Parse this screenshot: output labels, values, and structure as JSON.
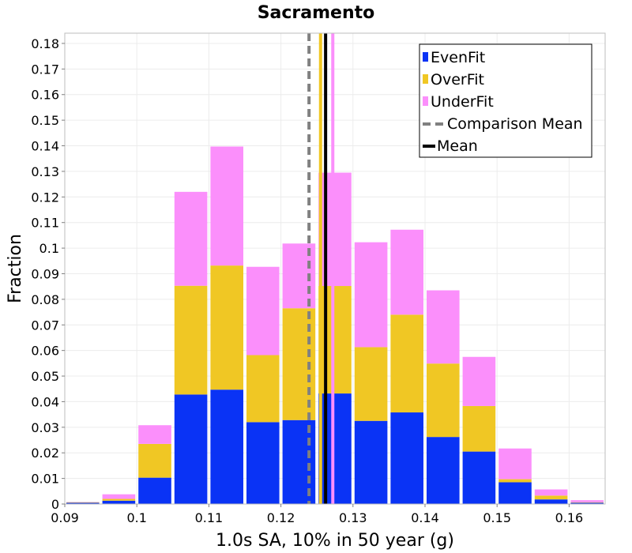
{
  "chart_data": {
    "type": "bar",
    "stacked": true,
    "title": "Sacramento",
    "xlabel": "1.0s SA, 10% in 50 year (g)",
    "ylabel": "Fraction",
    "xlim": [
      0.09,
      0.165
    ],
    "ylim": [
      0,
      0.184
    ],
    "xticks": [
      "0.09",
      "0.1",
      "0.11",
      "0.12",
      "0.13",
      "0.14",
      "0.15",
      "0.16"
    ],
    "yticks": [
      "0",
      "0.01",
      "0.02",
      "0.03",
      "0.04",
      "0.05",
      "0.06",
      "0.07",
      "0.08",
      "0.09",
      "0.1",
      "0.11",
      "0.12",
      "0.13",
      "0.14",
      "0.15",
      "0.16",
      "0.17",
      "0.18"
    ],
    "bin_width": 0.005,
    "bin_centers": [
      0.0925,
      0.0975,
      0.1025,
      0.1075,
      0.1125,
      0.1175,
      0.1225,
      0.1275,
      0.1325,
      0.1375,
      0.1425,
      0.1475,
      0.1525,
      0.1575,
      0.1625
    ],
    "series": [
      {
        "name": "EvenFit",
        "color": "#0a33f5",
        "values": [
          0.0005,
          0.0013,
          0.0103,
          0.0428,
          0.0447,
          0.032,
          0.0328,
          0.0432,
          0.0325,
          0.0358,
          0.0262,
          0.0205,
          0.0085,
          0.0018,
          0.0005
        ]
      },
      {
        "name": "OverFit",
        "color": "#f0c724",
        "values": [
          0.0002,
          0.0007,
          0.0132,
          0.0425,
          0.0485,
          0.0262,
          0.0437,
          0.042,
          0.0288,
          0.0382,
          0.0287,
          0.0178,
          0.0012,
          0.0015,
          0.0002
        ]
      },
      {
        "name": "UnderFit",
        "color": "#fb8ffb",
        "values": [
          0.0001,
          0.0018,
          0.0073,
          0.0367,
          0.0465,
          0.0345,
          0.0253,
          0.0443,
          0.041,
          0.0332,
          0.0286,
          0.0192,
          0.012,
          0.0024,
          0.0008
        ]
      }
    ],
    "reference_lines": [
      {
        "name": "Comparison Mean",
        "x": 0.1239,
        "color": "#808080",
        "style": "dashed"
      },
      {
        "name": "Mean",
        "x": 0.1262,
        "color": "#000000",
        "style": "solid"
      },
      {
        "name": "OverFit mean",
        "x": 0.1255,
        "color": "#f0c724",
        "style": "solid"
      },
      {
        "name": "UnderFit mean",
        "x": 0.1272,
        "color": "#fb8ffb",
        "style": "solid"
      }
    ],
    "legend": {
      "position": "top-right",
      "entries": [
        {
          "label": "EvenFit",
          "kind": "box",
          "color": "#0a33f5"
        },
        {
          "label": "OverFit",
          "kind": "box",
          "color": "#f0c724"
        },
        {
          "label": "UnderFit",
          "kind": "box",
          "color": "#fb8ffb"
        },
        {
          "label": "Comparison Mean",
          "kind": "dash",
          "color": "#808080"
        },
        {
          "label": "Mean",
          "kind": "line",
          "color": "#000000"
        }
      ]
    },
    "grid": true
  }
}
